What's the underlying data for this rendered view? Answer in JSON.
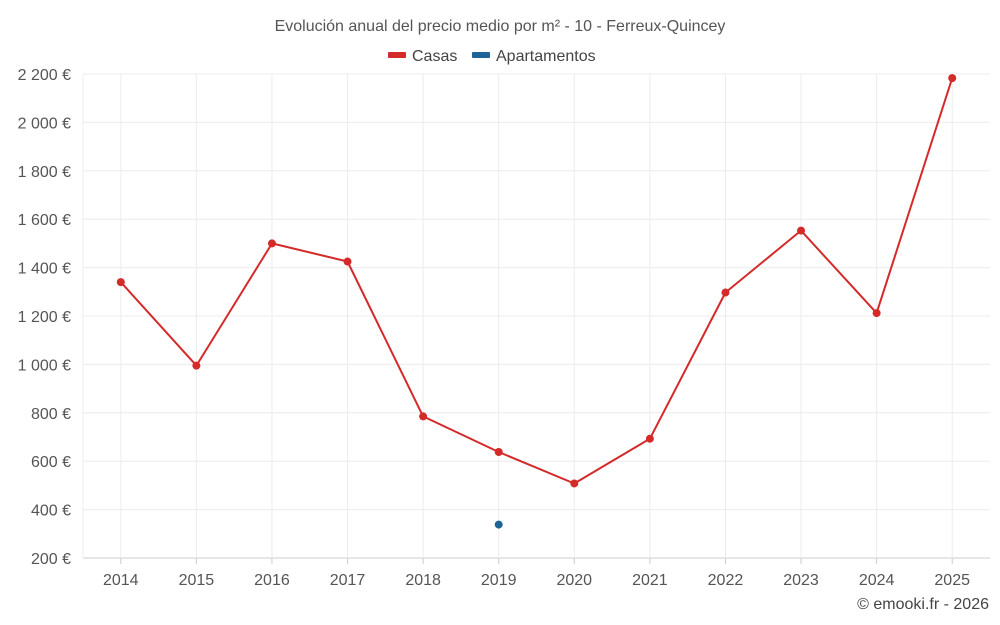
{
  "chart_data": {
    "type": "line",
    "title": "Evolución anual del precio medio por m² - 10 - Ferreux-Quincey",
    "categories": [
      "2014",
      "2015",
      "2016",
      "2017",
      "2018",
      "2019",
      "2020",
      "2021",
      "2022",
      "2023",
      "2024",
      "2025"
    ],
    "y_ticks": [
      "200 €",
      "400 €",
      "600 €",
      "800 €",
      "1 000 €",
      "1 200 €",
      "1 400 €",
      "1 600 €",
      "1 800 €",
      "2 000 €",
      "2 200 €"
    ],
    "ylim": [
      200,
      2200
    ],
    "grid": true,
    "legend_position": "top-center",
    "series": [
      {
        "name": "Casas",
        "color": "#d42a2a",
        "values": [
          1340,
          995,
          1500,
          1425,
          785,
          638,
          508,
          693,
          1297,
          1553,
          1212,
          2183
        ]
      },
      {
        "name": "Apartamentos",
        "color": "#1f6496",
        "values": [
          null,
          null,
          null,
          null,
          null,
          338,
          null,
          null,
          null,
          null,
          null,
          null
        ]
      }
    ]
  },
  "credit": "© emooki.fr - 2026"
}
